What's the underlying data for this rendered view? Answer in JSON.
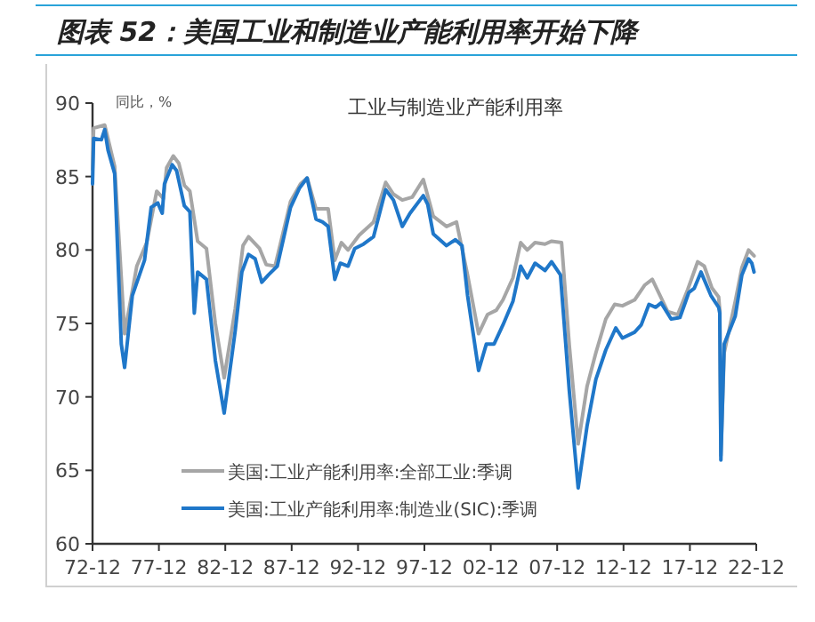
{
  "chart_data": {
    "type": "line",
    "title": "图表 52：美国工业和制造业产能利用率开始下降",
    "subtitle": "工业与制造业产能利用率",
    "ylabel": "同比，%",
    "xlim": [
      "1972-12",
      "2022-12"
    ],
    "xticks": [
      {
        "value": "1972-12",
        "label": "72-12"
      },
      {
        "value": "1977-12",
        "label": "77-12"
      },
      {
        "value": "1982-12",
        "label": "82-12"
      },
      {
        "value": "1987-12",
        "label": "87-12"
      },
      {
        "value": "1992-12",
        "label": "92-12"
      },
      {
        "value": "1997-12",
        "label": "97-12"
      },
      {
        "value": "2002-12",
        "label": "02-12"
      },
      {
        "value": "2007-12",
        "label": "07-12"
      },
      {
        "value": "2012-12",
        "label": "12-12"
      },
      {
        "value": "2017-12",
        "label": "17-12"
      },
      {
        "value": "2022-12",
        "label": "22-12"
      }
    ],
    "ylim": [
      60,
      90
    ],
    "yticks": [
      60,
      65,
      70,
      75,
      80,
      85,
      90
    ],
    "grid": false,
    "legend": "bottom left",
    "marker": "none",
    "line_style": "solid",
    "series": [
      {
        "name": "美国:工业产能利用率:全部工业:季调",
        "color": "#a6a6a6",
        "x": [
          "1972-12",
          "1973-01",
          "1973-11",
          "1974-08",
          "1975-05",
          "1976-04",
          "1977-01",
          "1977-10",
          "1978-04",
          "1978-07",
          "1979-01",
          "1979-06",
          "1979-11",
          "1980-04",
          "1980-11",
          "1981-07",
          "1982-03",
          "1982-11",
          "1983-09",
          "1984-04",
          "1984-09",
          "1985-07",
          "1986-01",
          "1986-09",
          "1987-11",
          "1988-08",
          "1989-02",
          "1989-10",
          "1990-09",
          "1991-03",
          "1991-09",
          "1992-03",
          "1993-01",
          "1994-02",
          "1995-01",
          "1995-08",
          "1996-04",
          "1997-01",
          "1997-11",
          "1998-08",
          "1999-08",
          "2000-05",
          "2001-03",
          "2002-01",
          "2002-09",
          "2003-05",
          "2003-11",
          "2004-08",
          "2005-03",
          "2005-09",
          "2006-04",
          "2007-01",
          "2007-07",
          "2008-04",
          "2008-11",
          "2009-07",
          "2010-03",
          "2010-11",
          "2011-08",
          "2012-04",
          "2012-11",
          "2013-10",
          "2014-07",
          "2015-02",
          "2015-09",
          "2016-04",
          "2017-01",
          "2017-10",
          "2018-07",
          "2019-01",
          "2019-08",
          "2020-02",
          "2020-03",
          "2020-04",
          "2020-07",
          "2021-05",
          "2021-11",
          "2022-05",
          "2022-10"
        ],
        "values": [
          85.5,
          88.3,
          88.5,
          85.7,
          74.3,
          78.9,
          80.5,
          84.0,
          83.5,
          85.6,
          86.4,
          85.9,
          84.4,
          84.0,
          80.6,
          80.1,
          75.0,
          71.3,
          76.0,
          80.3,
          80.9,
          80.1,
          79.0,
          78.9,
          83.3,
          84.5,
          84.9,
          82.8,
          82.8,
          79.3,
          80.5,
          80.0,
          81.0,
          81.9,
          84.6,
          83.8,
          83.4,
          83.6,
          84.8,
          82.3,
          81.6,
          81.9,
          78.3,
          74.3,
          75.6,
          75.9,
          76.6,
          78.1,
          80.5,
          80.0,
          80.5,
          80.4,
          80.6,
          80.5,
          73.5,
          66.8,
          70.7,
          73.0,
          75.3,
          76.3,
          76.2,
          76.6,
          77.6,
          78.0,
          76.9,
          75.8,
          75.6,
          77.3,
          79.2,
          78.9,
          77.4,
          76.8,
          75.9,
          66.0,
          73.0,
          76.5,
          78.8,
          80.0,
          79.6
        ]
      },
      {
        "name": "美国:工业产能利用率:制造业(SIC):季调",
        "color": "#1f77c9",
        "x": [
          "1972-12",
          "1973-01",
          "1973-08",
          "1973-11",
          "1974-02",
          "1974-08",
          "1975-02",
          "1975-05",
          "1975-12",
          "1976-11",
          "1977-05",
          "1977-11",
          "1978-03",
          "1978-05",
          "1978-12",
          "1979-04",
          "1979-11",
          "1980-04",
          "1980-08",
          "1980-11",
          "1981-07",
          "1982-03",
          "1982-11",
          "1983-09",
          "1984-03",
          "1984-09",
          "1985-03",
          "1985-09",
          "1986-03",
          "1986-11",
          "1987-11",
          "1988-07",
          "1989-02",
          "1989-10",
          "1990-04",
          "1990-09",
          "1991-03",
          "1991-08",
          "1992-03",
          "1992-09",
          "1993-05",
          "1994-02",
          "1995-01",
          "1995-08",
          "1996-04",
          "1996-11",
          "1997-11",
          "1998-03",
          "1998-08",
          "1999-08",
          "2000-04",
          "2000-10",
          "2001-03",
          "2002-01",
          "2002-08",
          "2003-03",
          "2003-11",
          "2004-08",
          "2005-03",
          "2005-09",
          "2006-04",
          "2007-01",
          "2007-07",
          "2008-03",
          "2008-11",
          "2009-07",
          "2010-03",
          "2010-11",
          "2011-08",
          "2012-05",
          "2012-11",
          "2013-10",
          "2014-04",
          "2014-11",
          "2015-05",
          "2015-10",
          "2016-07",
          "2017-03",
          "2017-11",
          "2018-04",
          "2018-10",
          "2019-07",
          "2020-02",
          "2020-03",
          "2020-04",
          "2020-07",
          "2021-05",
          "2021-11",
          "2022-05",
          "2022-08",
          "2022-10"
        ],
        "values": [
          84.5,
          87.6,
          87.5,
          88.2,
          86.8,
          85.2,
          73.6,
          72.0,
          76.9,
          79.3,
          82.9,
          83.2,
          82.5,
          84.5,
          85.8,
          85.4,
          83.0,
          82.6,
          75.7,
          78.5,
          78.0,
          72.5,
          68.9,
          74.5,
          78.5,
          79.7,
          79.4,
          77.8,
          78.3,
          78.9,
          82.9,
          84.2,
          84.9,
          82.1,
          81.9,
          81.6,
          78.0,
          79.1,
          78.9,
          80.1,
          80.4,
          80.9,
          84.1,
          83.4,
          81.6,
          82.5,
          83.7,
          83.1,
          81.1,
          80.3,
          80.7,
          80.3,
          76.9,
          71.8,
          73.6,
          73.6,
          74.9,
          76.5,
          78.9,
          78.1,
          79.1,
          78.6,
          79.2,
          78.3,
          70.4,
          63.8,
          68.0,
          71.2,
          73.2,
          74.7,
          74.0,
          74.4,
          74.9,
          76.3,
          76.1,
          76.4,
          75.3,
          75.4,
          77.1,
          77.4,
          78.5,
          76.9,
          76.1,
          75.7,
          65.7,
          73.6,
          75.5,
          78.3,
          79.4,
          79.1,
          78.5
        ]
      }
    ]
  }
}
